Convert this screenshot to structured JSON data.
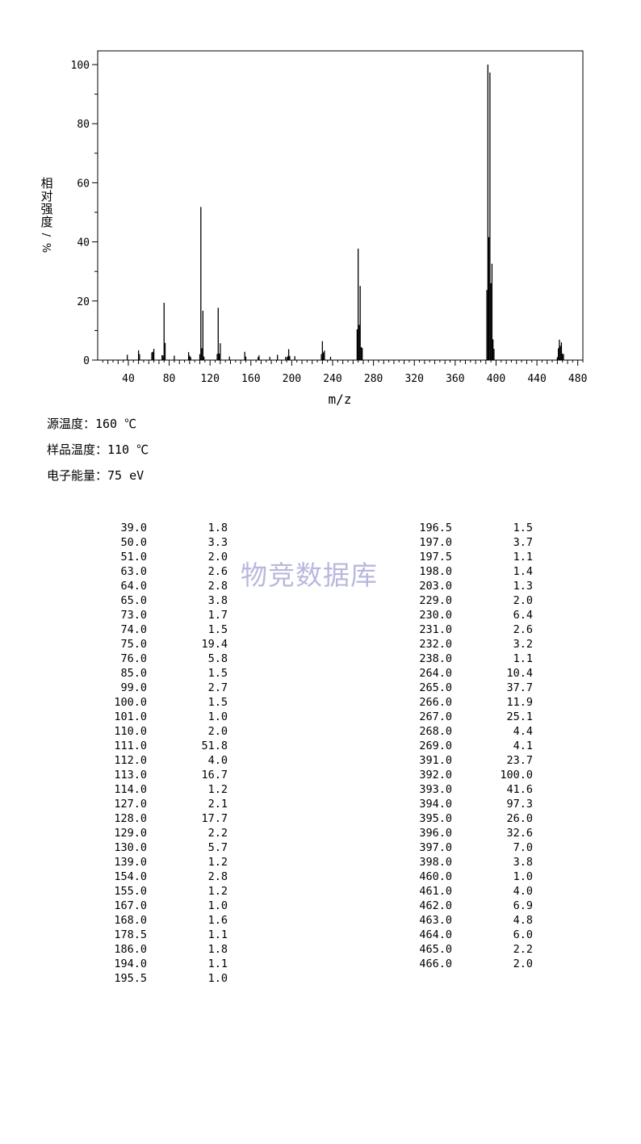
{
  "chart_data": {
    "type": "bar",
    "xlabel": "m/z",
    "ylabel": "相对强度/%",
    "xlim": [
      10,
      485
    ],
    "ylim": [
      0,
      105
    ],
    "x_ticks": [
      40,
      80,
      120,
      160,
      200,
      240,
      280,
      320,
      360,
      400,
      440,
      480
    ],
    "y_ticks": [
      0,
      20,
      40,
      60,
      80,
      100
    ],
    "grid": false,
    "peaks": [
      {
        "mz": 39.0,
        "intensity": 1.8
      },
      {
        "mz": 50.0,
        "intensity": 3.3
      },
      {
        "mz": 51.0,
        "intensity": 2.0
      },
      {
        "mz": 63.0,
        "intensity": 2.6
      },
      {
        "mz": 64.0,
        "intensity": 2.8
      },
      {
        "mz": 65.0,
        "intensity": 3.8
      },
      {
        "mz": 73.0,
        "intensity": 1.7
      },
      {
        "mz": 74.0,
        "intensity": 1.5
      },
      {
        "mz": 75.0,
        "intensity": 19.4
      },
      {
        "mz": 76.0,
        "intensity": 5.8
      },
      {
        "mz": 85.0,
        "intensity": 1.5
      },
      {
        "mz": 99.0,
        "intensity": 2.7
      },
      {
        "mz": 100.0,
        "intensity": 1.5
      },
      {
        "mz": 101.0,
        "intensity": 1.0
      },
      {
        "mz": 110.0,
        "intensity": 2.0
      },
      {
        "mz": 111.0,
        "intensity": 51.8
      },
      {
        "mz": 112.0,
        "intensity": 4.0
      },
      {
        "mz": 113.0,
        "intensity": 16.7
      },
      {
        "mz": 114.0,
        "intensity": 1.2
      },
      {
        "mz": 127.0,
        "intensity": 2.1
      },
      {
        "mz": 128.0,
        "intensity": 17.7
      },
      {
        "mz": 129.0,
        "intensity": 2.2
      },
      {
        "mz": 130.0,
        "intensity": 5.7
      },
      {
        "mz": 139.0,
        "intensity": 1.2
      },
      {
        "mz": 154.0,
        "intensity": 2.8
      },
      {
        "mz": 155.0,
        "intensity": 1.2
      },
      {
        "mz": 167.0,
        "intensity": 1.0
      },
      {
        "mz": 168.0,
        "intensity": 1.6
      },
      {
        "mz": 178.5,
        "intensity": 1.1
      },
      {
        "mz": 186.0,
        "intensity": 1.8
      },
      {
        "mz": 194.0,
        "intensity": 1.1
      },
      {
        "mz": 195.5,
        "intensity": 1.0
      },
      {
        "mz": 196.5,
        "intensity": 1.5
      },
      {
        "mz": 197.0,
        "intensity": 3.7
      },
      {
        "mz": 197.5,
        "intensity": 1.1
      },
      {
        "mz": 198.0,
        "intensity": 1.4
      },
      {
        "mz": 203.0,
        "intensity": 1.3
      },
      {
        "mz": 229.0,
        "intensity": 2.0
      },
      {
        "mz": 230.0,
        "intensity": 6.4
      },
      {
        "mz": 231.0,
        "intensity": 2.6
      },
      {
        "mz": 232.0,
        "intensity": 3.2
      },
      {
        "mz": 238.0,
        "intensity": 1.1
      },
      {
        "mz": 264.0,
        "intensity": 10.4
      },
      {
        "mz": 265.0,
        "intensity": 37.7
      },
      {
        "mz": 266.0,
        "intensity": 11.9
      },
      {
        "mz": 267.0,
        "intensity": 25.1
      },
      {
        "mz": 268.0,
        "intensity": 4.4
      },
      {
        "mz": 269.0,
        "intensity": 4.1
      },
      {
        "mz": 391.0,
        "intensity": 23.7
      },
      {
        "mz": 392.0,
        "intensity": 100.0
      },
      {
        "mz": 393.0,
        "intensity": 41.6
      },
      {
        "mz": 394.0,
        "intensity": 97.3
      },
      {
        "mz": 395.0,
        "intensity": 26.0
      },
      {
        "mz": 396.0,
        "intensity": 32.6
      },
      {
        "mz": 397.0,
        "intensity": 7.0
      },
      {
        "mz": 398.0,
        "intensity": 3.8
      },
      {
        "mz": 460.0,
        "intensity": 1.0
      },
      {
        "mz": 461.0,
        "intensity": 4.0
      },
      {
        "mz": 462.0,
        "intensity": 6.9
      },
      {
        "mz": 463.0,
        "intensity": 4.8
      },
      {
        "mz": 464.0,
        "intensity": 6.0
      },
      {
        "mz": 465.0,
        "intensity": 2.2
      },
      {
        "mz": 466.0,
        "intensity": 2.0
      }
    ]
  },
  "conditions": {
    "source_temp": "源温度：160 ℃",
    "sample_temp": "样品温度：110 ℃",
    "electron_energy": "电子能量：75 eV"
  },
  "watermark": "物竞数据库",
  "table": {
    "left": [
      [
        "39.0",
        "1.8"
      ],
      [
        "50.0",
        "3.3"
      ],
      [
        "51.0",
        "2.0"
      ],
      [
        "63.0",
        "2.6"
      ],
      [
        "64.0",
        "2.8"
      ],
      [
        "65.0",
        "3.8"
      ],
      [
        "73.0",
        "1.7"
      ],
      [
        "74.0",
        "1.5"
      ],
      [
        "75.0",
        "19.4"
      ],
      [
        "76.0",
        "5.8"
      ],
      [
        "85.0",
        "1.5"
      ],
      [
        "99.0",
        "2.7"
      ],
      [
        "100.0",
        "1.5"
      ],
      [
        "101.0",
        "1.0"
      ],
      [
        "110.0",
        "2.0"
      ],
      [
        "111.0",
        "51.8"
      ],
      [
        "112.0",
        "4.0"
      ],
      [
        "113.0",
        "16.7"
      ],
      [
        "114.0",
        "1.2"
      ],
      [
        "127.0",
        "2.1"
      ],
      [
        "128.0",
        "17.7"
      ],
      [
        "129.0",
        "2.2"
      ],
      [
        "130.0",
        "5.7"
      ],
      [
        "139.0",
        "1.2"
      ],
      [
        "154.0",
        "2.8"
      ],
      [
        "155.0",
        "1.2"
      ],
      [
        "167.0",
        "1.0"
      ],
      [
        "168.0",
        "1.6"
      ],
      [
        "178.5",
        "1.1"
      ],
      [
        "186.0",
        "1.8"
      ],
      [
        "194.0",
        "1.1"
      ],
      [
        "195.5",
        "1.0"
      ]
    ],
    "right": [
      [
        "196.5",
        "1.5"
      ],
      [
        "197.0",
        "3.7"
      ],
      [
        "197.5",
        "1.1"
      ],
      [
        "198.0",
        "1.4"
      ],
      [
        "203.0",
        "1.3"
      ],
      [
        "229.0",
        "2.0"
      ],
      [
        "230.0",
        "6.4"
      ],
      [
        "231.0",
        "2.6"
      ],
      [
        "232.0",
        "3.2"
      ],
      [
        "238.0",
        "1.1"
      ],
      [
        "264.0",
        "10.4"
      ],
      [
        "265.0",
        "37.7"
      ],
      [
        "266.0",
        "11.9"
      ],
      [
        "267.0",
        "25.1"
      ],
      [
        "268.0",
        "4.4"
      ],
      [
        "269.0",
        "4.1"
      ],
      [
        "391.0",
        "23.7"
      ],
      [
        "392.0",
        "100.0"
      ],
      [
        "393.0",
        "41.6"
      ],
      [
        "394.0",
        "97.3"
      ],
      [
        "395.0",
        "26.0"
      ],
      [
        "396.0",
        "32.6"
      ],
      [
        "397.0",
        "7.0"
      ],
      [
        "398.0",
        "3.8"
      ],
      [
        "460.0",
        "1.0"
      ],
      [
        "461.0",
        "4.0"
      ],
      [
        "462.0",
        "6.9"
      ],
      [
        "463.0",
        "4.8"
      ],
      [
        "464.0",
        "6.0"
      ],
      [
        "465.0",
        "2.2"
      ],
      [
        "466.0",
        "2.0"
      ]
    ]
  }
}
